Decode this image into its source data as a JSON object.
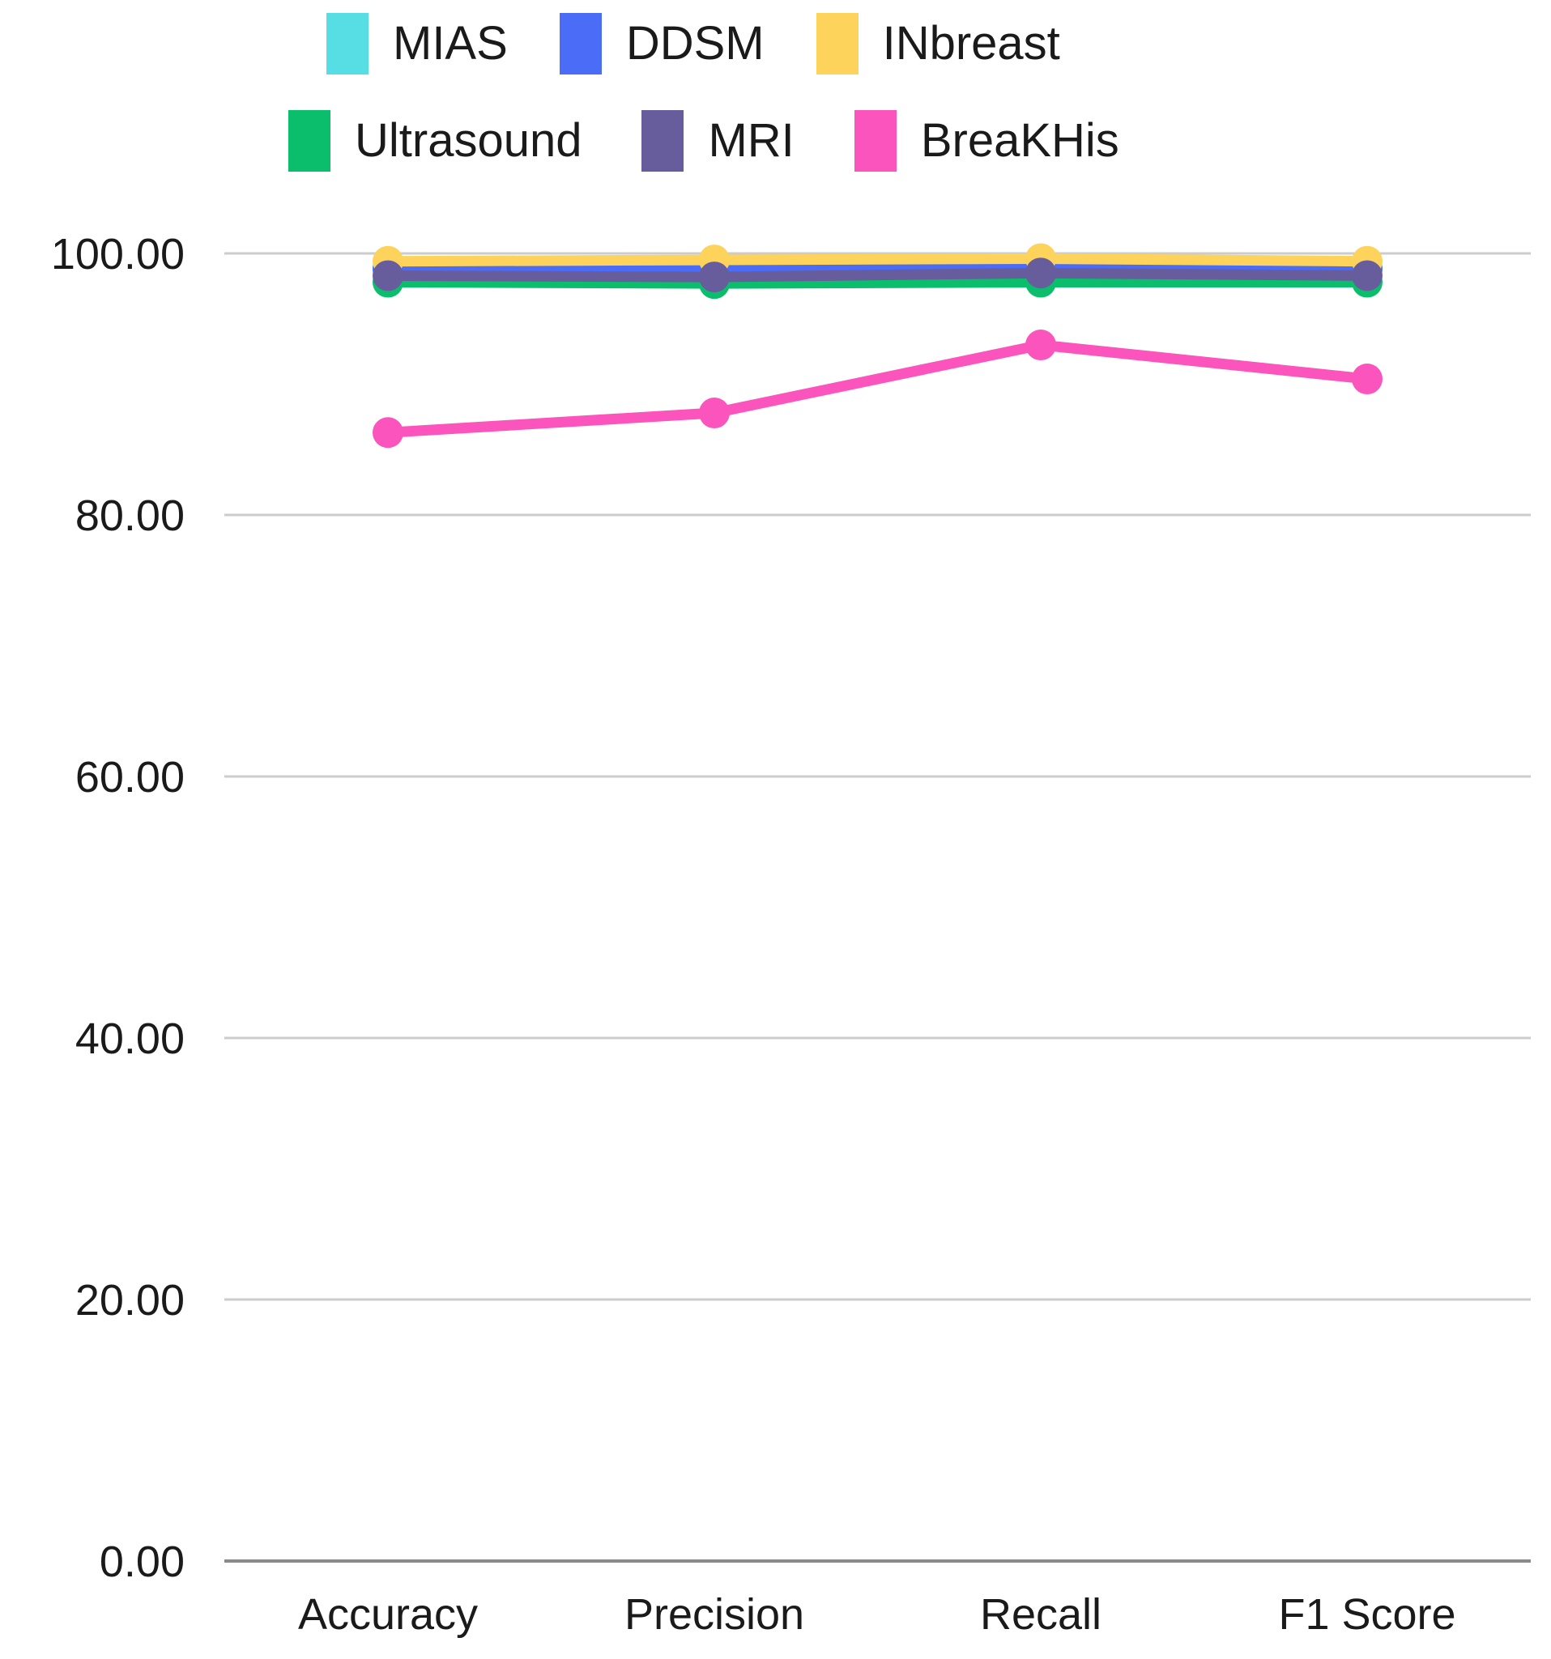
{
  "chart_data": {
    "type": "line",
    "title": "",
    "xlabel": "",
    "ylabel": "",
    "categories": [
      "Accuracy",
      "Precision",
      "Recall",
      "F1 Score"
    ],
    "series": [
      {
        "name": "MIAS",
        "color": "#57DEE4",
        "values": [
          98.9,
          98.9,
          99.0,
          98.9
        ]
      },
      {
        "name": "DDSM",
        "color": "#4A6CF6",
        "values": [
          98.8,
          98.8,
          98.9,
          98.8
        ]
      },
      {
        "name": "INbreast",
        "color": "#FDD35C",
        "values": [
          99.4,
          99.5,
          99.6,
          99.4
        ]
      },
      {
        "name": "Ultrasound",
        "color": "#0ABE6B",
        "values": [
          97.8,
          97.7,
          97.8,
          97.8
        ]
      },
      {
        "name": "MRI",
        "color": "#675D9D",
        "values": [
          98.3,
          98.2,
          98.5,
          98.3
        ]
      },
      {
        "name": "BreaKHis",
        "color": "#FB54BC",
        "values": [
          86.3,
          87.8,
          93.0,
          90.4
        ]
      }
    ],
    "ylim": [
      0,
      100
    ],
    "yticks": [
      0,
      20,
      40,
      60,
      80,
      100
    ],
    "ytick_labels": [
      "0.00",
      "20.00",
      "40.00",
      "60.00",
      "80.00",
      "100.00"
    ],
    "grid": true,
    "legend_position": "top",
    "legend_rows": [
      [
        0,
        1,
        2
      ],
      [
        3,
        4,
        5
      ]
    ]
  },
  "colors": {
    "background": "#FFFFFF",
    "gridline": "#CCCCCC",
    "zero_axis": "#8A8A8A",
    "text": "#1A1A1A"
  }
}
